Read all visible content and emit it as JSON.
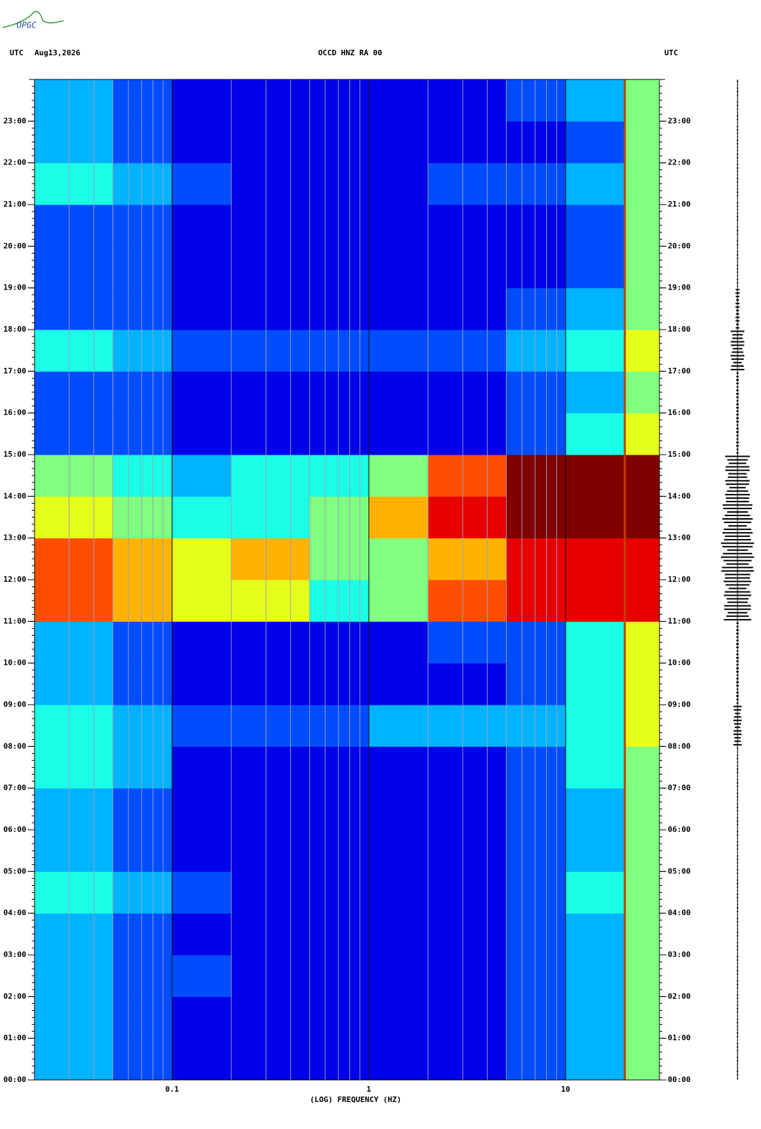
{
  "chart_data": {
    "type": "spectrogram",
    "logo": "OPGC",
    "left_label": "UTC",
    "date": "Aug13,2026",
    "title": "OCCD HNZ RA 00",
    "right_label": "UTC",
    "xlabel": "(LOG) FREQUENCY (HZ)",
    "xlog": true,
    "xlim": [
      0.02,
      30
    ],
    "xticks": [
      0.1,
      1,
      10
    ],
    "xgrid": [
      0.03,
      0.04,
      0.05,
      0.06,
      0.07,
      0.08,
      0.09,
      0.1,
      0.2,
      0.3,
      0.4,
      0.5,
      0.6,
      0.7,
      0.8,
      0.9,
      1,
      2,
      3,
      4,
      5,
      6,
      7,
      8,
      9,
      10,
      20
    ],
    "ylim": [
      0,
      24
    ],
    "yticks": [
      {
        "value": 0,
        "label": "00:00"
      },
      {
        "value": 1,
        "label": "01:00"
      },
      {
        "value": 2,
        "label": "02:00"
      },
      {
        "value": 3,
        "label": "03:00"
      },
      {
        "value": 4,
        "label": "04:00"
      },
      {
        "value": 5,
        "label": "05:00"
      },
      {
        "value": 6,
        "label": "06:00"
      },
      {
        "value": 7,
        "label": "07:00"
      },
      {
        "value": 8,
        "label": "08:00"
      },
      {
        "value": 9,
        "label": "09:00"
      },
      {
        "value": 10,
        "label": "10:00"
      },
      {
        "value": 11,
        "label": "11:00"
      },
      {
        "value": 12,
        "label": "12:00"
      },
      {
        "value": 13,
        "label": "13:00"
      },
      {
        "value": 14,
        "label": "14:00"
      },
      {
        "value": 15,
        "label": "15:00"
      },
      {
        "value": 16,
        "label": "16:00"
      },
      {
        "value": 17,
        "label": "17:00"
      },
      {
        "value": 18,
        "label": "18:00"
      },
      {
        "value": 19,
        "label": "19:00"
      },
      {
        "value": 20,
        "label": "20:00"
      },
      {
        "value": 21,
        "label": "21:00"
      },
      {
        "value": 22,
        "label": "22:00"
      },
      {
        "value": 23,
        "label": "23:00"
      }
    ],
    "x_edges": [
      0.02,
      0.05,
      0.1,
      0.2,
      0.5,
      1,
      2,
      5,
      10,
      20,
      30
    ],
    "zlim": [
      0,
      10
    ],
    "colormap": [
      "#00008f",
      "#0000ff",
      "#0080ff",
      "#00ffff",
      "#80ff80",
      "#ffff00",
      "#ff8000",
      "#ff0000",
      "#800000"
    ],
    "z": [
      [
        3,
        2,
        1,
        1,
        1,
        1,
        1,
        2,
        3,
        5
      ],
      [
        3,
        2,
        1,
        1,
        1,
        1,
        1,
        2,
        3,
        5
      ],
      [
        3,
        2,
        2,
        1,
        1,
        1,
        1,
        2,
        3,
        5
      ],
      [
        3,
        2,
        1,
        1,
        1,
        1,
        1,
        2,
        3,
        5
      ],
      [
        4,
        3,
        2,
        1,
        1,
        1,
        1,
        2,
        4,
        5
      ],
      [
        3,
        2,
        1,
        1,
        1,
        1,
        1,
        2,
        3,
        5
      ],
      [
        3,
        2,
        1,
        1,
        1,
        1,
        1,
        2,
        3,
        5
      ],
      [
        4,
        3,
        1,
        1,
        1,
        1,
        1,
        2,
        4,
        5
      ],
      [
        4,
        3,
        2,
        2,
        2,
        3,
        3,
        3,
        4,
        6
      ],
      [
        3,
        2,
        1,
        1,
        1,
        1,
        1,
        2,
        4,
        6
      ],
      [
        3,
        2,
        1,
        1,
        1,
        1,
        2,
        2,
        4,
        6
      ],
      [
        8,
        7,
        6,
        6,
        4,
        5,
        8,
        9,
        9,
        9
      ],
      [
        8,
        7,
        6,
        7,
        5,
        5,
        7,
        9,
        9,
        9
      ],
      [
        6,
        5,
        4,
        4,
        5,
        7,
        9,
        10,
        10,
        10
      ],
      [
        5,
        4,
        3,
        4,
        4,
        5,
        8,
        10,
        10,
        10
      ],
      [
        2,
        2,
        1,
        1,
        1,
        1,
        1,
        2,
        4,
        6
      ],
      [
        2,
        2,
        1,
        1,
        1,
        1,
        1,
        2,
        3,
        5
      ],
      [
        4,
        3,
        2,
        2,
        2,
        2,
        2,
        3,
        4,
        6
      ],
      [
        2,
        2,
        1,
        1,
        1,
        1,
        1,
        2,
        3,
        5
      ],
      [
        2,
        2,
        1,
        1,
        1,
        1,
        1,
        1,
        2,
        5
      ],
      [
        2,
        2,
        1,
        1,
        1,
        1,
        1,
        1,
        2,
        5
      ],
      [
        4,
        3,
        2,
        1,
        1,
        1,
        2,
        2,
        3,
        5
      ],
      [
        3,
        2,
        1,
        1,
        1,
        1,
        1,
        1,
        2,
        5
      ],
      [
        3,
        2,
        1,
        1,
        1,
        1,
        1,
        2,
        3,
        5
      ]
    ],
    "tone_hz": 20,
    "tone_color": "#c04000",
    "trace_amplitude": [
      1,
      1,
      1,
      1,
      1,
      1,
      1,
      1,
      6,
      2,
      2,
      20,
      24,
      22,
      18,
      2,
      2,
      10,
      3,
      1,
      1,
      1,
      1,
      1
    ]
  }
}
